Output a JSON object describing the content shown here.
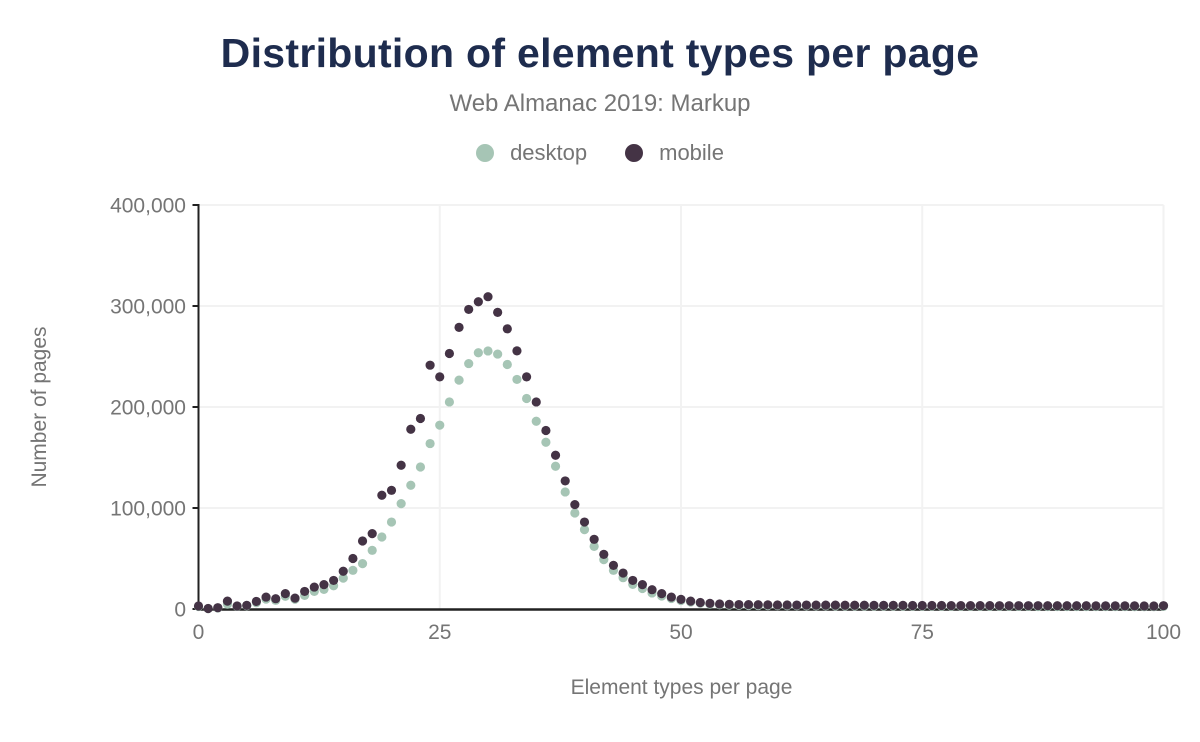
{
  "header": {
    "title": "Distribution of element types per page",
    "subtitle": "Web Almanac 2019: Markup"
  },
  "colors": {
    "title": "#1e2c4e",
    "muted_text": "#757575",
    "axis_line": "#212121",
    "gridline": "#f2f2f2",
    "background": "#ffffff",
    "desktop": "#a6c5b5",
    "mobile": "#443345"
  },
  "chart_data": {
    "type": "scatter",
    "title": "Distribution of element types per page",
    "subtitle": "Web Almanac 2019: Markup",
    "xlabel": "Element types per page",
    "ylabel": "Number of pages",
    "xlim": [
      0,
      100
    ],
    "ylim": [
      0,
      400000
    ],
    "grid": true,
    "legend_position": "top",
    "point_radius": 4.6,
    "x_ticks": {
      "values": [
        0,
        25,
        50,
        75,
        100
      ],
      "labels": [
        "0",
        "25",
        "50",
        "75",
        "100"
      ]
    },
    "y_ticks": {
      "values": [
        0,
        100000,
        200000,
        300000,
        400000
      ],
      "labels": [
        "0",
        "100,000",
        "200,000",
        "300,000",
        "400,000"
      ]
    },
    "x": [
      0,
      1,
      2,
      3,
      4,
      5,
      6,
      7,
      8,
      9,
      10,
      11,
      12,
      13,
      14,
      15,
      16,
      17,
      18,
      19,
      20,
      21,
      22,
      23,
      24,
      25,
      26,
      27,
      28,
      29,
      30,
      31,
      32,
      33,
      34,
      35,
      36,
      37,
      38,
      39,
      40,
      41,
      42,
      43,
      44,
      45,
      46,
      47,
      48,
      49,
      50,
      51,
      52,
      53,
      54,
      55,
      56,
      57,
      58,
      59,
      60,
      61,
      62,
      63,
      64,
      65,
      66,
      67,
      68,
      69,
      70,
      71,
      72,
      73,
      74,
      75,
      76,
      77,
      78,
      79,
      80,
      81,
      82,
      83,
      84,
      85,
      86,
      87,
      88,
      89,
      90,
      91,
      92,
      93,
      94,
      95,
      96,
      97,
      98,
      99,
      100
    ],
    "series": [
      {
        "name": "desktop",
        "color": "#a6c5b5",
        "values": [
          2500,
          400,
          1000,
          4800,
          2600,
          3200,
          6300,
          9800,
          8600,
          12600,
          9600,
          13500,
          17400,
          19400,
          23000,
          30600,
          38300,
          44900,
          58100,
          71300,
          86100,
          104300,
          122500,
          140600,
          163800,
          182000,
          205000,
          226600,
          243000,
          253700,
          255500,
          252400,
          242100,
          227300,
          208400,
          185900,
          165100,
          141300,
          115900,
          95000,
          78600,
          62000,
          48900,
          38300,
          31000,
          24400,
          20300,
          15900,
          12900,
          10400,
          8400,
          6900,
          5700,
          4800,
          4200,
          3800,
          3600,
          3500,
          3400,
          3300,
          3300,
          3200,
          3200,
          3100,
          3100,
          3100,
          3000,
          3000,
          3000,
          2900,
          2900,
          2900,
          2900,
          2800,
          2800,
          2800,
          2800,
          2700,
          2700,
          2700,
          2700,
          2700,
          2600,
          2600,
          2600,
          2600,
          2600,
          2500,
          2500,
          2500,
          2500,
          2500,
          2400,
          2400,
          2400,
          2400,
          2400,
          2300,
          2300,
          2300,
          2600
        ]
      },
      {
        "name": "mobile",
        "color": "#443345",
        "values": [
          3000,
          500,
          1300,
          7800,
          3000,
          3600,
          7500,
          11800,
          10200,
          15200,
          10800,
          17400,
          21700,
          24100,
          28300,
          37400,
          50000,
          67300,
          74600,
          112600,
          117500,
          142300,
          178000,
          188600,
          241400,
          229800,
          253000,
          278800,
          296600,
          304200,
          309200,
          293700,
          277400,
          255600,
          229800,
          205000,
          176700,
          152200,
          126800,
          103400,
          86100,
          69000,
          54100,
          43200,
          35600,
          28300,
          24100,
          19100,
          15200,
          11800,
          9500,
          7800,
          6400,
          5600,
          5000,
          4600,
          4400,
          4300,
          4200,
          4100,
          4000,
          4000,
          3900,
          3900,
          3800,
          3800,
          3800,
          3700,
          3700,
          3700,
          3600,
          3600,
          3600,
          3600,
          3500,
          3500,
          3500,
          3500,
          3400,
          3400,
          3400,
          3400,
          3400,
          3300,
          3300,
          3300,
          3300,
          3300,
          3200,
          3200,
          3200,
          3200,
          3200,
          3100,
          3100,
          3100,
          3100,
          3100,
          3000,
          3000,
          3300
        ]
      }
    ]
  }
}
